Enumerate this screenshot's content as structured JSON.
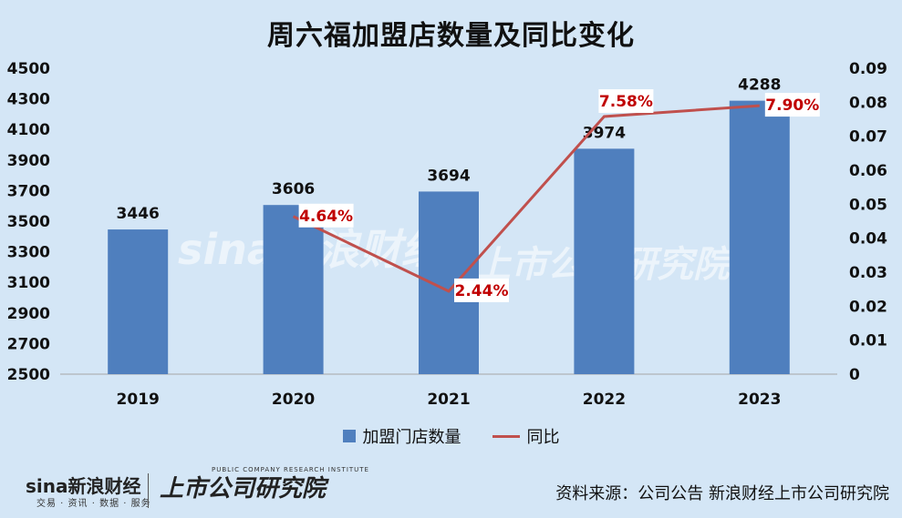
{
  "title": "周六福加盟店数量及同比变化",
  "chart_data": {
    "type": "bar",
    "categories": [
      "2019",
      "2020",
      "2021",
      "2022",
      "2023"
    ],
    "series": [
      {
        "name": "加盟门店数量",
        "type": "bar",
        "axis": "left",
        "values": [
          3446,
          3606,
          3694,
          3974,
          4288
        ],
        "labels": [
          "3446",
          "3606",
          "3694",
          "3974",
          "4288"
        ]
      },
      {
        "name": "同比",
        "type": "line",
        "axis": "right",
        "values": [
          null,
          0.0464,
          0.0244,
          0.0758,
          0.079
        ],
        "labels": [
          "",
          "4.64%",
          "2.44%",
          "7.58%",
          "7.90%"
        ]
      }
    ],
    "left_axis": {
      "min": 2500,
      "max": 4500,
      "ticks": [
        "2500",
        "2700",
        "2900",
        "3100",
        "3300",
        "3500",
        "3700",
        "3900",
        "4100",
        "4300",
        "4500"
      ]
    },
    "right_axis": {
      "min": 0,
      "max": 0.09,
      "ticks": [
        "0",
        "0.01",
        "0.02",
        "0.03",
        "0.04",
        "0.05",
        "0.06",
        "0.07",
        "0.08",
        "0.09"
      ]
    },
    "grid": false,
    "legend": "bottom",
    "colors": {
      "bar": "#4f7fbe",
      "line": "#c0504d",
      "line_label": "#c00000"
    }
  },
  "footer": {
    "logo": "sina新浪财经",
    "logo_sub": "交易 · 资讯 · 数据 · 服务",
    "institute": "上市公司研究院",
    "institute_en": "PUBLIC COMPANY RESEARCH INSTITUTE",
    "source": "资料来源：公司公告 新浪财经上市公司研究院"
  },
  "watermark": {
    "left": "sina新浪财经",
    "right": "上市公司研究院"
  }
}
